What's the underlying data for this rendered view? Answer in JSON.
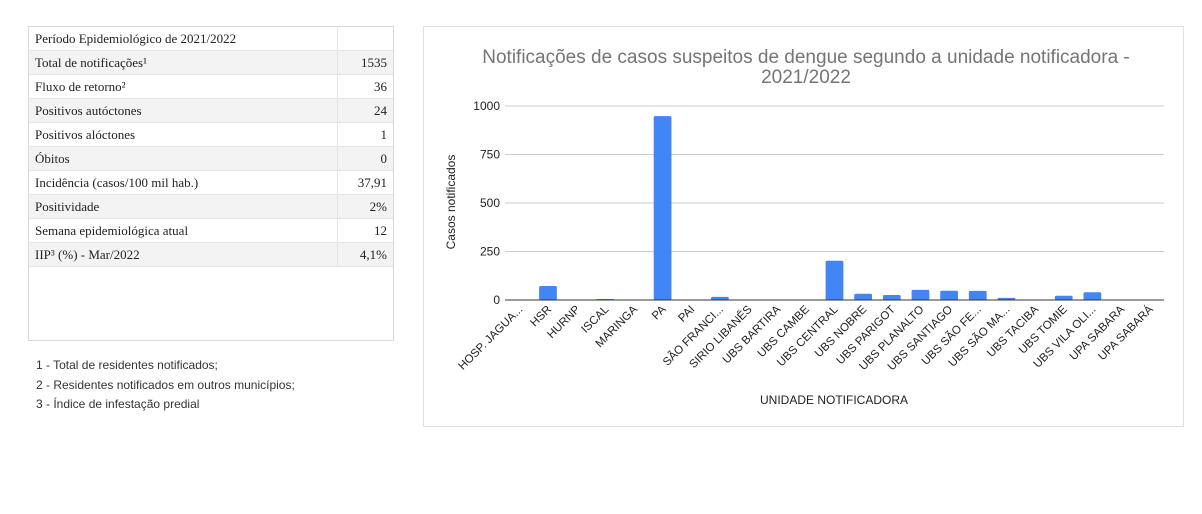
{
  "stats": {
    "header": "Período Epidemiológico de 2021/2022",
    "header_value": "",
    "rows": [
      {
        "label": "Total de notificações¹",
        "value": "1535"
      },
      {
        "label": "Fluxo de retorno²",
        "value": "36"
      },
      {
        "label": "Positivos autóctones",
        "value": "24"
      },
      {
        "label": "Positivos alóctones",
        "value": "1"
      },
      {
        "label": "Óbitos",
        "value": "0"
      },
      {
        "label": "Incidência (casos/100 mil hab.)",
        "value": "37,91"
      },
      {
        "label": "Positividade",
        "value": "2%"
      },
      {
        "label": "Semana epidemiológica atual",
        "value": "12"
      },
      {
        "label": "IIP³ (%) - Mar/2022",
        "value": "4,1%"
      }
    ]
  },
  "footnotes": [
    "1 - Total de residentes notificados;",
    "2 - Residentes notificados em outros municípios;",
    "3 - Índice de infestação predial"
  ],
  "chart_data": {
    "type": "bar",
    "title_lines": [
      "Notificações de casos suspeitos de dengue segundo a unidade notificadora -",
      "2021/2022"
    ],
    "xlabel": "UNIDADE NOTIFICADORA",
    "ylabel": "Casos notificados",
    "ylim": [
      0,
      1000
    ],
    "yticks": [
      0,
      250,
      500,
      750,
      1000
    ],
    "grid": true,
    "bar_color": "#4285f4",
    "categories": [
      "HOSP. JAGUA...",
      "HSR",
      "HURNP",
      "ISCAL",
      "MARINGA",
      "PA",
      "PAI",
      "SÃO FRANCI...",
      "SIRIO LIBANÊS",
      "UBS BARTIRA",
      "UBS CAMBE",
      "UBS CENTRAL",
      "UBS NOBRE",
      "UBS PARIGOT",
      "UBS PLANALTO",
      "UBS SANTIAGO",
      "UBS SÃO FE...",
      "UBS SÃO MA...",
      "UBS TACIBA",
      "UBS TOMIE",
      "UBS VILA OLI...",
      "UPA SABARA",
      "UPA SABARÁ"
    ],
    "values": [
      0,
      72,
      0,
      5,
      0,
      948,
      0,
      16,
      0,
      0,
      0,
      202,
      32,
      26,
      52,
      48,
      47,
      11,
      0,
      22,
      40,
      0,
      0
    ]
  }
}
